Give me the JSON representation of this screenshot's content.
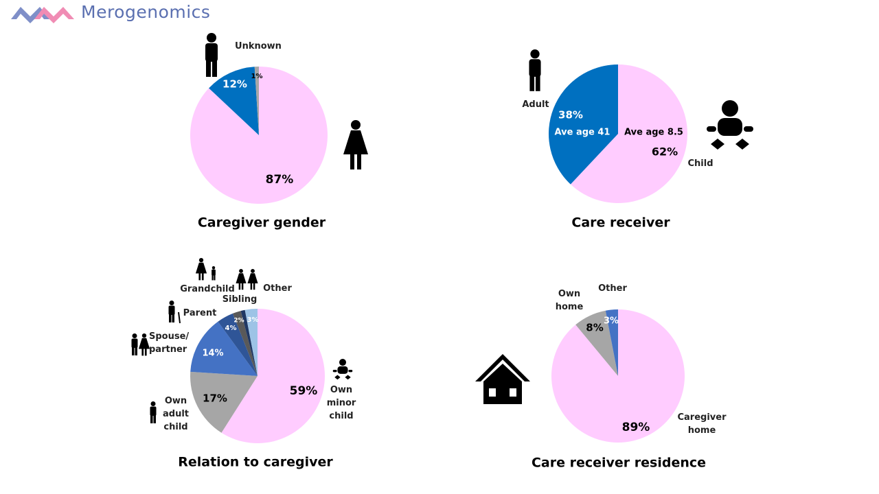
{
  "logo": "Merogenomics",
  "chart_data": [
    {
      "type": "pie",
      "title": "Caregiver gender",
      "categories": [
        null,
        null,
        "Unknown"
      ],
      "values": [
        87,
        12,
        1
      ],
      "value_labels": [
        "87%",
        "12%",
        "1%"
      ],
      "colors": [
        "#ffccff",
        "#0070c0",
        "#a6a6a6"
      ]
    },
    {
      "type": "pie",
      "title": "Care receiver",
      "categories": [
        "Child",
        "Adult"
      ],
      "values": [
        62,
        38
      ],
      "value_labels": [
        "62%",
        "38%"
      ],
      "annotations": [
        "Ave age 8.5",
        "Ave age 41"
      ],
      "colors": [
        "#ffccff",
        "#0070c0"
      ]
    },
    {
      "type": "pie",
      "title": "Relation to caregiver",
      "categories": [
        "Own minor child",
        "Own adult child",
        "Spouse/ partner",
        "Parent",
        "Grandchild",
        "Sibling",
        "Other"
      ],
      "values": [
        59,
        17,
        14,
        4,
        2,
        1,
        3
      ],
      "value_labels": [
        "59%",
        "17%",
        "14%",
        "4%",
        "2%",
        null,
        "3%"
      ],
      "colors": [
        "#ffccff",
        "#a6a6a6",
        "#4472c4",
        "#2f5597",
        "#595959",
        "#203864",
        "#9dc3e6"
      ]
    },
    {
      "type": "pie",
      "title": "Care receiver residence",
      "categories": [
        "Caregiver home",
        "Own home",
        "Other"
      ],
      "values": [
        89,
        8,
        3
      ],
      "value_labels": [
        "89%",
        "8%",
        "3%"
      ],
      "colors": [
        "#ffccff",
        "#a6a6a6",
        "#4472c4"
      ]
    }
  ]
}
